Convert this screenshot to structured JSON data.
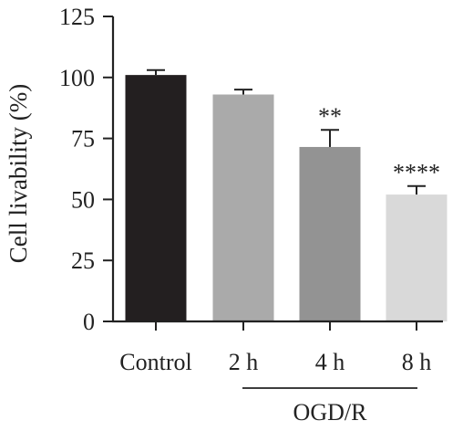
{
  "chart_data": {
    "type": "bar",
    "title": "",
    "xlabel": "",
    "ylabel": "Cell livability (%)",
    "ylim": [
      0,
      125
    ],
    "yticks": [
      0,
      25,
      50,
      75,
      100,
      125
    ],
    "categories": [
      "Control",
      "2 h",
      "4 h",
      "8 h"
    ],
    "values": [
      101,
      93,
      71.5,
      52
    ],
    "errors": [
      2,
      2,
      7,
      3.5
    ],
    "significance": [
      "",
      "",
      "**",
      "****"
    ],
    "colors": [
      "#231f20",
      "#aaaaaa",
      "#939393",
      "#d9d9d9"
    ],
    "group_label": "OGD/R",
    "grid": false,
    "legend": "none"
  }
}
